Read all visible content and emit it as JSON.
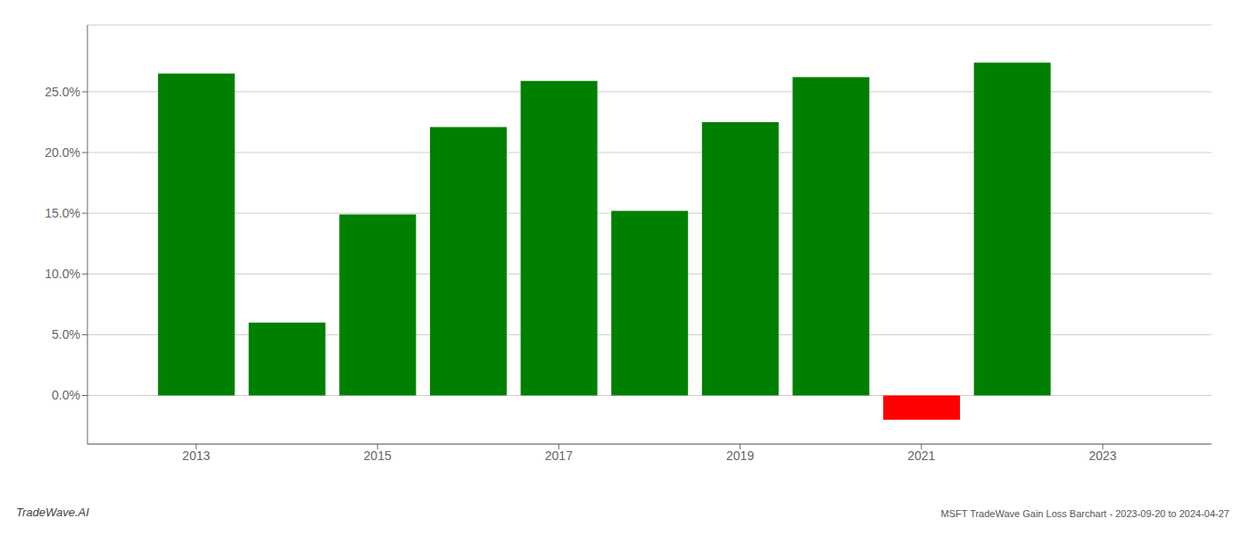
{
  "chart_data": {
    "type": "bar",
    "title": "MSFT TradeWave Gain Loss Barchart - 2023-09-20 to 2024-04-27",
    "annotations": [
      "TradeWave.AI"
    ],
    "x": [
      2013,
      2014,
      2015,
      2016,
      2017,
      2018,
      2019,
      2020,
      2021,
      2022
    ],
    "values": [
      0.265,
      0.06,
      0.149,
      0.221,
      0.259,
      0.152,
      0.225,
      0.262,
      -0.02,
      0.274
    ],
    "colors": [
      "#008000",
      "#008000",
      "#008000",
      "#008000",
      "#008000",
      "#008000",
      "#008000",
      "#008000",
      "#ff0000",
      "#008000"
    ],
    "xlim": [
      2011.8,
      2024.2
    ],
    "xticks": [
      2013,
      2015,
      2017,
      2019,
      2021,
      2023
    ],
    "ylim": [
      -0.04,
      0.305
    ],
    "yticks": [
      {
        "value": 0.0,
        "label": "0.0%"
      },
      {
        "value": 0.05,
        "label": "5.0%"
      },
      {
        "value": 0.1,
        "label": "10.0%"
      },
      {
        "value": 0.15,
        "label": "15.0%"
      },
      {
        "value": 0.2,
        "label": "20.0%"
      },
      {
        "value": 0.25,
        "label": "25.0%"
      }
    ],
    "grid": true
  }
}
